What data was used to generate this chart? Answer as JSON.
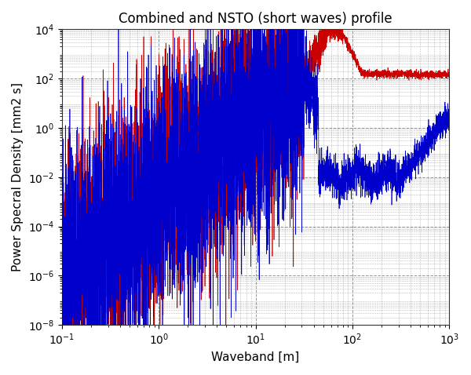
{
  "title": "Combined and NSTO (short waves) profile",
  "xlabel": "Waveband [m]",
  "ylabel": "Power Specral Density [mm2 s]",
  "xlim_log": [
    -1,
    3
  ],
  "ylim_log": [
    -8,
    4
  ],
  "blue_color": "#0000CC",
  "red_color": "#CC0000",
  "background_color": "#ffffff",
  "grid_color": "#555555",
  "title_fontsize": 12,
  "label_fontsize": 11,
  "tick_fontsize": 10,
  "linewidth_dense": 0.5,
  "linewidth_sparse": 1.5,
  "N_dense": 5000,
  "seed": 123
}
